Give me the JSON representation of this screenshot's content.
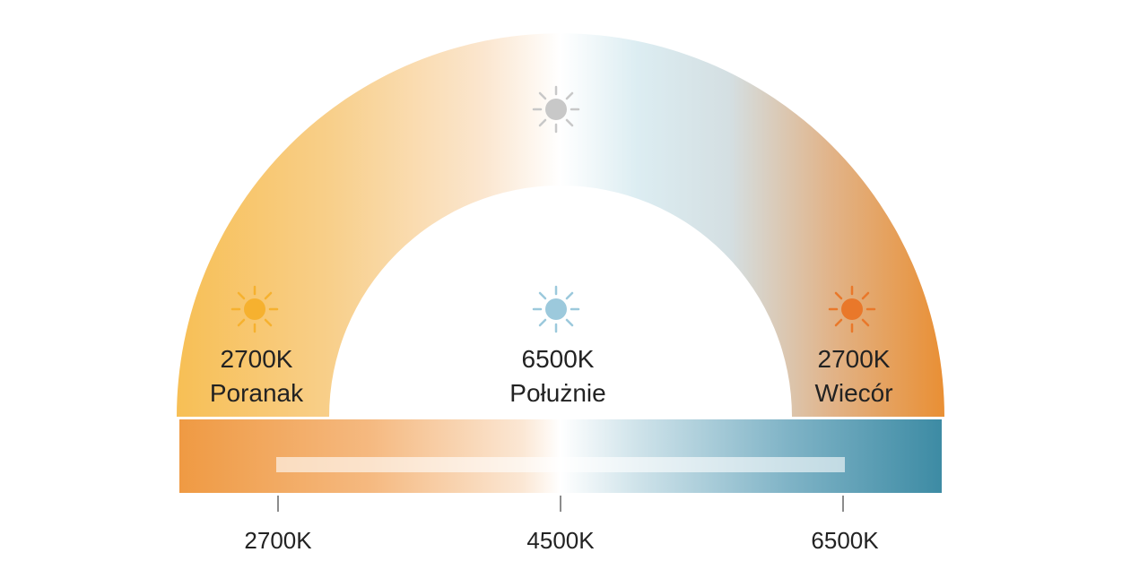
{
  "labels": [
    {
      "kelvin": "2700K",
      "time": "Poranak"
    },
    {
      "kelvin": "6500K",
      "time": "Połużnie"
    },
    {
      "kelvin": "2700K",
      "time": "Wiecór"
    }
  ],
  "scale": {
    "ticks": [
      "2700K",
      "4500K",
      "6500K"
    ]
  }
}
